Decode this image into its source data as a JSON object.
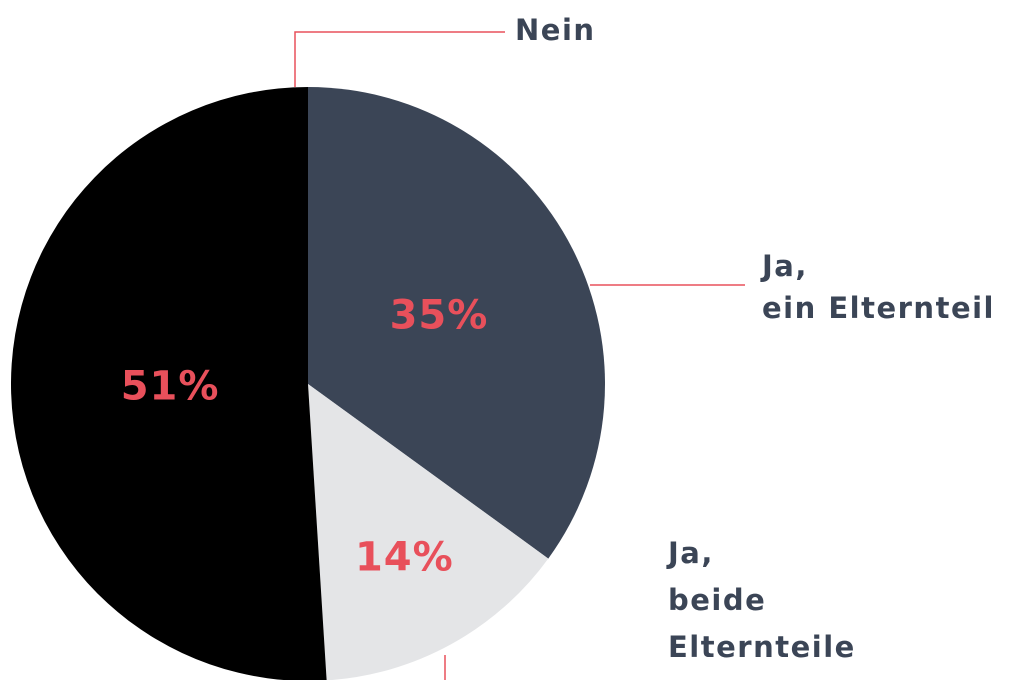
{
  "chart_data": {
    "type": "pie",
    "categories": [
      [
        "Ja,",
        "ein Elternteil"
      ],
      [
        "Ja,",
        "beide",
        "Elternteile"
      ],
      [
        "Nein"
      ]
    ],
    "values": [
      35,
      14,
      51
    ],
    "value_labels": [
      "35%",
      "14%",
      "51%"
    ],
    "colors": [
      "#3b4556",
      "#e4e5e7",
      "#000000"
    ]
  }
}
